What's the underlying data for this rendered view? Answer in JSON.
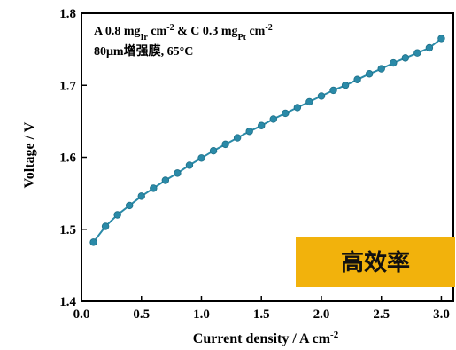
{
  "chart_data": {
    "type": "line",
    "title": "",
    "xlabel": "Current density / A cm",
    "xlabel_sup": "-2",
    "ylabel": "Voltage / V",
    "xlim": [
      0.0,
      3.1
    ],
    "ylim": [
      1.4,
      1.8
    ],
    "xticks": [
      0.0,
      0.5,
      1.0,
      1.5,
      2.0,
      2.5,
      3.0
    ],
    "xtick_labels": [
      "0.0",
      "0.5",
      "1.0",
      "1.5",
      "2.0",
      "2.5",
      "3.0"
    ],
    "yticks": [
      1.4,
      1.5,
      1.6,
      1.7,
      1.8
    ],
    "ytick_labels": [
      "1.4",
      "1.5",
      "1.6",
      "1.7",
      "1.8"
    ],
    "grid": false,
    "legend": "none",
    "series": [
      {
        "color": "#2a8aa8",
        "marker": "circle",
        "x": [
          0.1,
          0.2,
          0.3,
          0.4,
          0.5,
          0.6,
          0.7,
          0.8,
          0.9,
          1.0,
          1.1,
          1.2,
          1.3,
          1.4,
          1.5,
          1.6,
          1.7,
          1.8,
          1.9,
          2.0,
          2.1,
          2.2,
          2.3,
          2.4,
          2.5,
          2.6,
          2.7,
          2.8,
          2.9,
          3.0
        ],
        "y": [
          1.482,
          1.504,
          1.52,
          1.533,
          1.546,
          1.557,
          1.568,
          1.578,
          1.589,
          1.599,
          1.609,
          1.618,
          1.627,
          1.636,
          1.644,
          1.653,
          1.661,
          1.669,
          1.677,
          1.685,
          1.693,
          1.7,
          1.708,
          1.716,
          1.723,
          1.731,
          1.738,
          1.745,
          1.752,
          1.765
        ]
      }
    ],
    "annotation": {
      "line1": {
        "a": "A 0.8 mg",
        "a_sub": "Ir",
        "b": " cm",
        "b_sup": "-2",
        "c": " & C 0.3 mg",
        "c_sub": "Pt",
        "d": " cm",
        "d_sup": "-2"
      },
      "line2": "80μm增强膜, 65°C"
    },
    "badge": {
      "text": "高效率",
      "color": "#f2b20c"
    }
  }
}
